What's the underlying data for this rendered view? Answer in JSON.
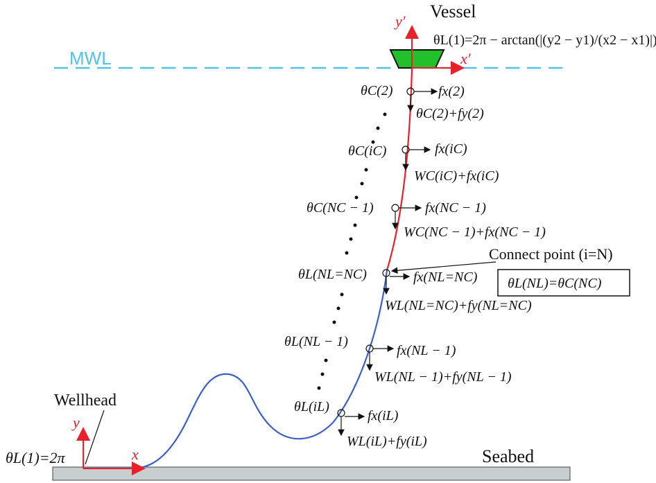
{
  "labels": {
    "vessel": "Vessel",
    "mwl": "MWL",
    "wellhead": "Wellhead",
    "seabed": "Seabed",
    "connect_point": "Connect point (i=N)",
    "equation_box": "θL(NL)=θC(NC)",
    "top_angle": "θL(1)=2π − arctan(|(y2 − y1)/(x2 − x1)|)",
    "bottom_angle": "θL(1)=2π",
    "axis_x_prime": "x′",
    "axis_y_prime": "y′",
    "axis_x": "x",
    "axis_y": "y"
  },
  "node_labels": {
    "c2": "θC(2)",
    "c2_fx": "fx(2)",
    "c2_fy": "θC(2)+fy(2)",
    "ci": "θC(iC)",
    "ci_fx": "fx(iC)",
    "ci_w": "WC(iC)+fx(iC)",
    "cn": "θC(NC − 1)",
    "cn_fx": "fx(NC − 1)",
    "cn_w": "WC(NC − 1)+fx(NC − 1)",
    "ln": "θL(NL=NC)",
    "ln_fx": "fx(NL=NC)",
    "ln_w": "WL(NL=NC)+fy(NL=NC)",
    "ln1": "θL(NL − 1)",
    "ln1_fx": "fx(NL − 1)",
    "ln1_w": "WL(NL − 1)+fy(NL − 1)",
    "li": "θL(iL)",
    "li_fx": "fx(iL)",
    "li_w": "WL(iL)+fy(iL)"
  },
  "colors": {
    "mwl": "#4fc3e8",
    "riser_top": "#e8202a",
    "riser_bottom": "#3a5fcd",
    "vessel": "#22c02a",
    "axes": "#e8202a",
    "seabed": "#c8cdd0"
  }
}
